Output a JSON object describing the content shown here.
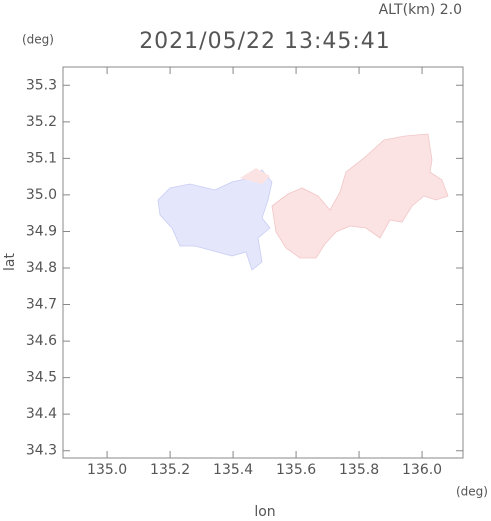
{
  "chart_data": {
    "type": "map",
    "title": "2021/05/22 13:45:41",
    "annotation": "ALT(km)  2.0",
    "y_unit": "(deg)",
    "x_unit": "(deg)",
    "xlabel": "lon",
    "ylabel": "lat",
    "xlim": [
      134.86,
      136.13
    ],
    "ylim": [
      34.28,
      35.35
    ],
    "xticks": [
      {
        "value": 135,
        "label": "135.0"
      },
      135.2,
      135.4,
      135.6,
      135.8,
      {
        "value": 136,
        "label": "136.0"
      }
    ],
    "yticks": [
      34.3,
      34.4,
      34.5,
      34.6,
      34.7,
      34.8,
      34.9,
      {
        "value": 35,
        "label": "35.0"
      },
      35.1,
      35.2,
      35.3
    ]
  }
}
